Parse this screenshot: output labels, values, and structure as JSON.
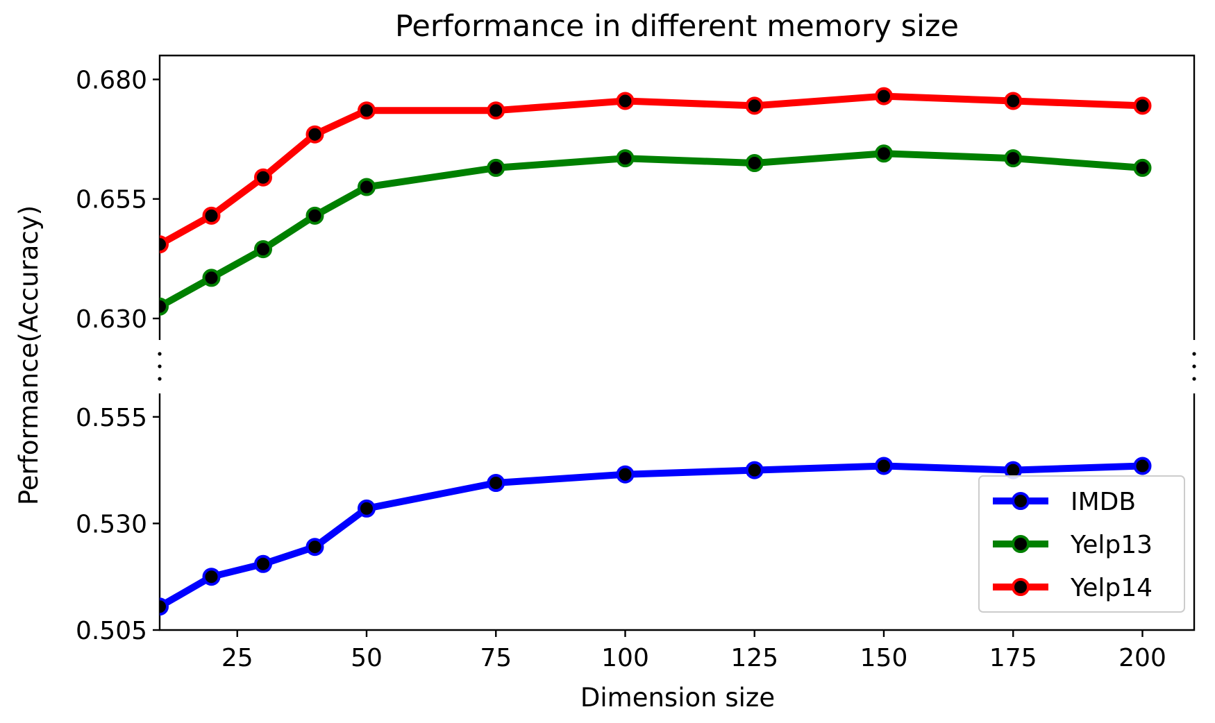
{
  "chart_data": {
    "type": "line",
    "title": "Performance in different memory size",
    "xlabel": "Dimension size",
    "ylabel": "Performance(Accuracy)",
    "x": [
      10,
      20,
      30,
      40,
      50,
      75,
      100,
      125,
      150,
      175,
      200
    ],
    "xticks": [
      25,
      50,
      75,
      100,
      125,
      150,
      175,
      200
    ],
    "xlim": [
      10,
      210
    ],
    "broken_y_axis": true,
    "upper_panel": {
      "ylim": [
        0.6255,
        0.685
      ],
      "yticks": [
        "0.630",
        "0.655",
        "0.680"
      ],
      "ytick_values": [
        0.63,
        0.655,
        0.68
      ]
    },
    "lower_panel": {
      "ylim": [
        0.505,
        0.5605
      ],
      "yticks": [
        "0.505",
        "0.530",
        "0.555"
      ],
      "ytick_values": [
        0.505,
        0.53,
        0.555
      ]
    },
    "legend_position": "lower-right",
    "series": [
      {
        "name": "IMDB",
        "panel": "lower",
        "color": "#0000ff",
        "values": [
          0.5105,
          0.5175,
          0.5205,
          0.5245,
          0.5335,
          0.5395,
          0.5415,
          0.5425,
          0.5435,
          0.5425,
          0.5435
        ]
      },
      {
        "name": "Yelp13",
        "panel": "upper",
        "color": "#008000",
        "values": [
          0.6325,
          0.6385,
          0.6445,
          0.6515,
          0.6575,
          0.6615,
          0.6635,
          0.6625,
          0.6645,
          0.6635,
          0.6615
        ]
      },
      {
        "name": "Yelp14",
        "panel": "upper",
        "color": "#ff0000",
        "values": [
          0.6455,
          0.6515,
          0.6595,
          0.6685,
          0.6735,
          0.6735,
          0.6755,
          0.6745,
          0.6765,
          0.6755,
          0.6745
        ]
      }
    ]
  }
}
